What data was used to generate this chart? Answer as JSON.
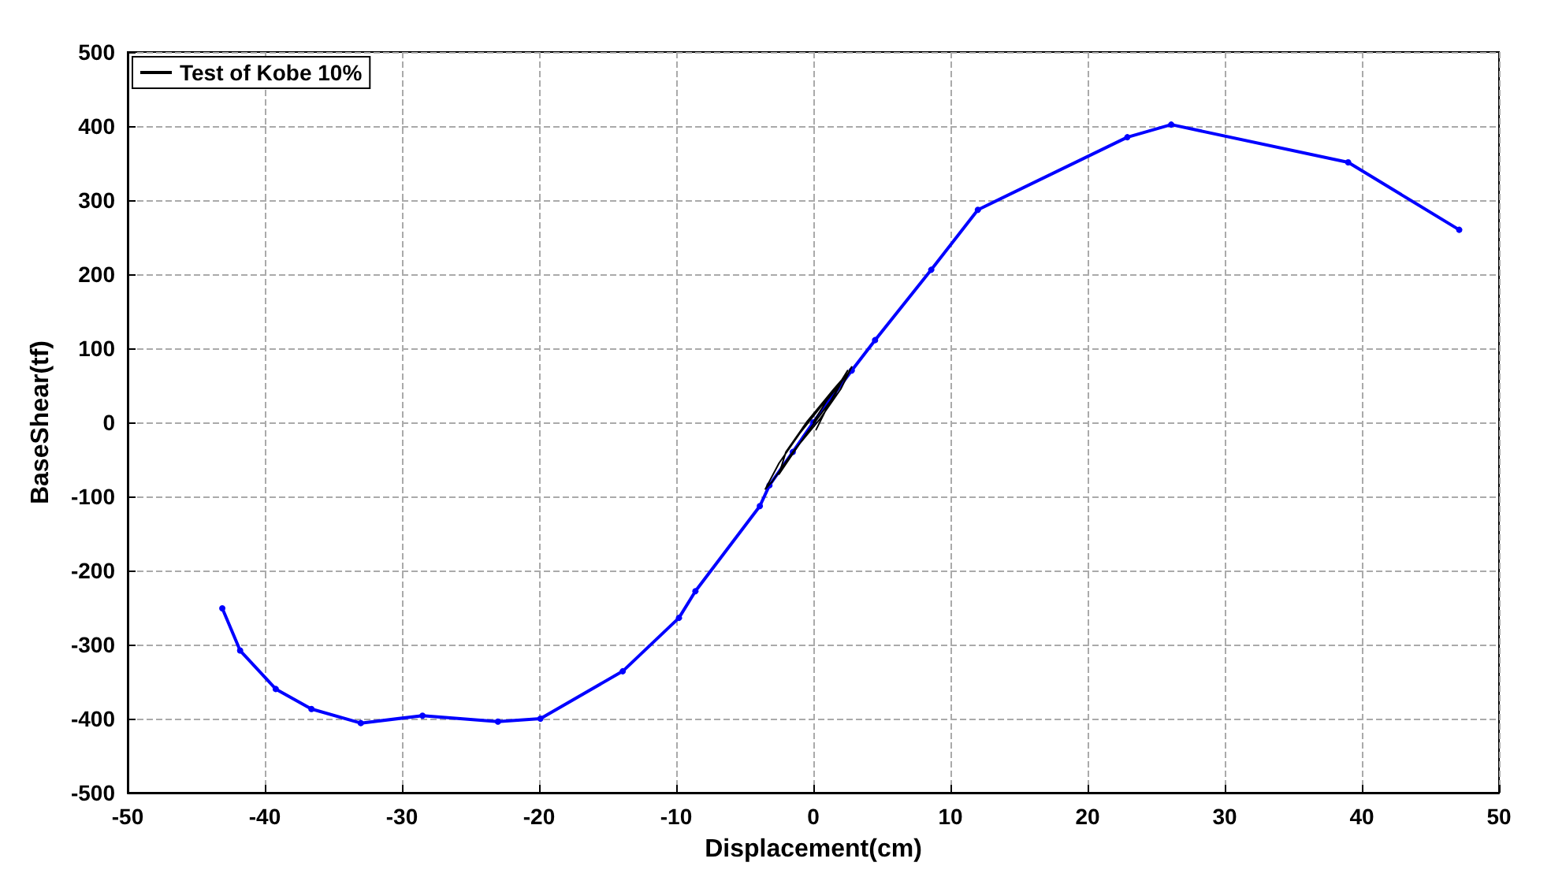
{
  "chart_data": {
    "type": "line",
    "xlabel": "Displacement(cm)",
    "ylabel": "BaseShear(tf)",
    "xlim": [
      -50,
      50
    ],
    "xticks": [
      -50,
      -40,
      -30,
      -20,
      -10,
      0,
      10,
      20,
      30,
      40,
      50
    ],
    "ylim": [
      -500,
      500
    ],
    "yticks": [
      -500,
      -400,
      -300,
      -200,
      -100,
      0,
      100,
      200,
      300,
      400,
      500
    ],
    "grid": true,
    "line_style": "solid",
    "legend": "top left",
    "series": [
      {
        "name": "Test of Kobe 10%",
        "color": "#000000",
        "marker": "none",
        "x": [
          0,
          1,
          2.5,
          2.8,
          2,
          0.5,
          -1.5,
          -3,
          -3.5,
          -2.5,
          -1,
          0.5,
          2,
          2.5,
          1.5,
          -0.5,
          -2.5,
          -2,
          -0.5,
          1.5,
          2.2,
          1,
          0.2
        ],
        "values": [
          0,
          30,
          65,
          75,
          45,
          5,
          -40,
          -80,
          -90,
          -55,
          -15,
          20,
          55,
          70,
          35,
          -15,
          -70,
          -40,
          0,
          45,
          60,
          20,
          -10
        ]
      },
      {
        "color": "#0000ff",
        "marker": "circle",
        "x": [
          -43.1,
          -41.8,
          -39.2,
          -36.6,
          -33,
          -28.5,
          -23,
          -19.9,
          -13.9,
          -9.8,
          -8.6,
          -3.9,
          -3.2,
          -1.5,
          0,
          1.5,
          2.8,
          4.5,
          8.6,
          12,
          22.9,
          26.1,
          39,
          47.1
        ],
        "values": [
          -251,
          -308,
          -360,
          -387,
          -406,
          -396,
          -404,
          -400,
          -336,
          -264,
          -228,
          -113,
          -85,
          -40,
          0,
          38,
          70,
          111,
          206,
          287,
          385,
          402,
          351,
          260
        ]
      }
    ]
  }
}
